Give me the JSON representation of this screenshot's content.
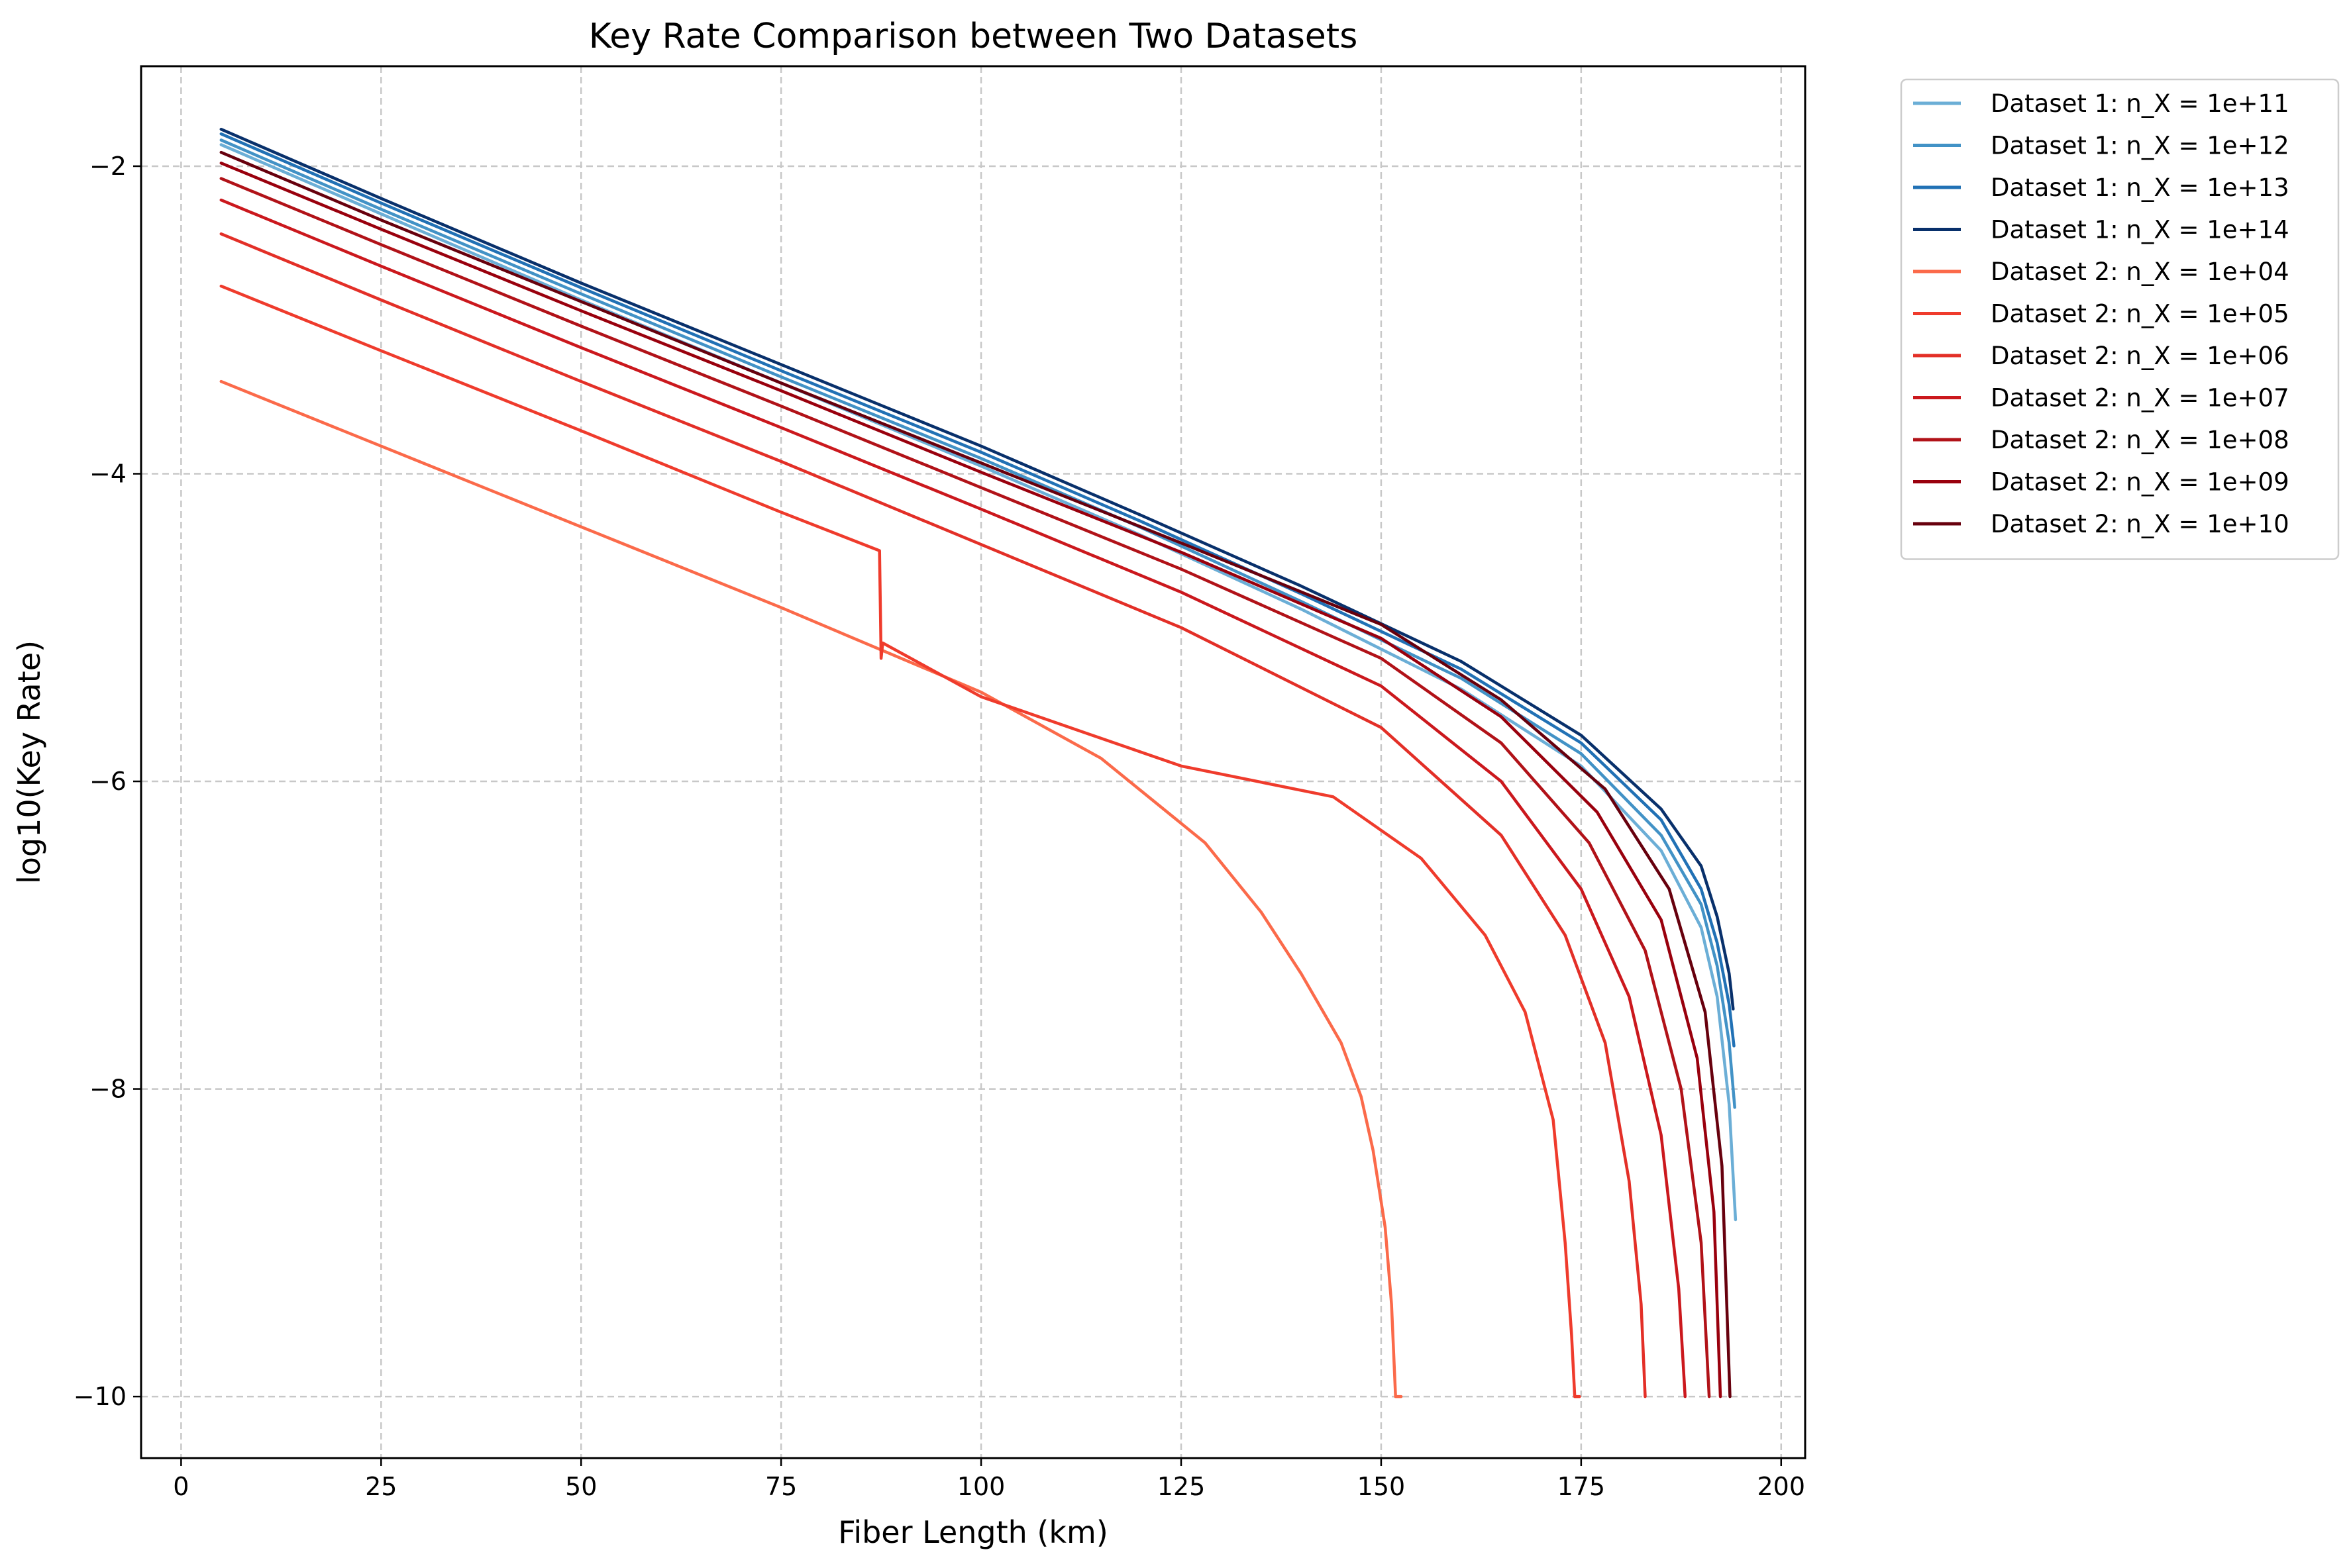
{
  "chart_data": {
    "type": "line",
    "title": "Key Rate Comparison between Two Datasets",
    "xlabel": "Fiber Length (km)",
    "ylabel": "log10(Key Rate)",
    "xlim": [
      -5,
      203
    ],
    "ylim": [
      -10.4,
      -1.35
    ],
    "xticks": [
      0,
      25,
      50,
      75,
      100,
      125,
      150,
      175,
      200
    ],
    "xtick_labels": [
      "0",
      "25",
      "50",
      "75",
      "100",
      "125",
      "150",
      "175",
      "200"
    ],
    "yticks": [
      -2,
      -4,
      -6,
      -8,
      -10
    ],
    "ytick_labels": [
      "−2",
      "−4",
      "−6",
      "−8",
      "−10"
    ],
    "grid": true,
    "legend_position": "outside-top-right",
    "series": [
      {
        "name": "Dataset 1: n_X = 1e+11",
        "color": "#6baed6",
        "points": [
          [
            5,
            -1.86
          ],
          [
            25,
            -2.31
          ],
          [
            50,
            -2.87
          ],
          [
            75,
            -3.41
          ],
          [
            100,
            -3.95
          ],
          [
            120,
            -4.4
          ],
          [
            140,
            -4.88
          ],
          [
            160,
            -5.4
          ],
          [
            175,
            -5.9
          ],
          [
            185,
            -6.45
          ],
          [
            190,
            -6.95
          ],
          [
            192,
            -7.4
          ],
          [
            193.5,
            -8.1
          ],
          [
            194.3,
            -8.85
          ]
        ]
      },
      {
        "name": "Dataset 1: n_X = 1e+12",
        "color": "#4292c6",
        "points": [
          [
            5,
            -1.83
          ],
          [
            25,
            -2.28
          ],
          [
            50,
            -2.83
          ],
          [
            75,
            -3.37
          ],
          [
            100,
            -3.9
          ],
          [
            120,
            -4.35
          ],
          [
            140,
            -4.83
          ],
          [
            160,
            -5.33
          ],
          [
            175,
            -5.82
          ],
          [
            185,
            -6.35
          ],
          [
            190,
            -6.8
          ],
          [
            192,
            -7.2
          ],
          [
            193.5,
            -7.7
          ],
          [
            194.2,
            -8.12
          ]
        ]
      },
      {
        "name": "Dataset 1: n_X = 1e+13",
        "color": "#2171b5",
        "points": [
          [
            5,
            -1.79
          ],
          [
            25,
            -2.24
          ],
          [
            50,
            -2.79
          ],
          [
            75,
            -3.33
          ],
          [
            100,
            -3.86
          ],
          [
            120,
            -4.31
          ],
          [
            140,
            -4.78
          ],
          [
            160,
            -5.27
          ],
          [
            175,
            -5.75
          ],
          [
            185,
            -6.25
          ],
          [
            190,
            -6.7
          ],
          [
            192,
            -7.05
          ],
          [
            193.5,
            -7.45
          ],
          [
            194.1,
            -7.72
          ]
        ]
      },
      {
        "name": "Dataset 1: n_X = 1e+14",
        "color": "#08306b",
        "points": [
          [
            5,
            -1.76
          ],
          [
            25,
            -2.21
          ],
          [
            50,
            -2.76
          ],
          [
            75,
            -3.29
          ],
          [
            100,
            -3.82
          ],
          [
            120,
            -4.27
          ],
          [
            140,
            -4.73
          ],
          [
            160,
            -5.22
          ],
          [
            175,
            -5.7
          ],
          [
            185,
            -6.18
          ],
          [
            190,
            -6.55
          ],
          [
            192,
            -6.88
          ],
          [
            193.5,
            -7.25
          ],
          [
            194,
            -7.48
          ]
        ]
      },
      {
        "name": "Dataset 2: n_X = 1e+04",
        "color": "#fb6a4a",
        "points": [
          [
            5,
            -3.4
          ],
          [
            25,
            -3.82
          ],
          [
            55,
            -4.45
          ],
          [
            75,
            -4.87
          ],
          [
            100,
            -5.42
          ],
          [
            115,
            -5.85
          ],
          [
            128,
            -6.4
          ],
          [
            135,
            -6.85
          ],
          [
            140,
            -7.25
          ],
          [
            145,
            -7.7
          ],
          [
            147.5,
            -8.05
          ],
          [
            149,
            -8.4
          ],
          [
            150.5,
            -8.9
          ],
          [
            151.3,
            -9.4
          ],
          [
            151.8,
            -10.0
          ],
          [
            152.5,
            -10.0
          ]
        ]
      },
      {
        "name": "Dataset 2: n_X = 1e+05",
        "color": "#ef3b2c",
        "points": [
          [
            5,
            -2.78
          ],
          [
            25,
            -3.2
          ],
          [
            50,
            -3.72
          ],
          [
            75,
            -4.25
          ],
          [
            87.3,
            -4.5
          ],
          [
            87.5,
            -5.2
          ],
          [
            87.7,
            -5.1
          ],
          [
            100,
            -5.45
          ],
          [
            125,
            -5.9
          ],
          [
            144,
            -6.1
          ],
          [
            155,
            -6.5
          ],
          [
            163,
            -7.0
          ],
          [
            168,
            -7.5
          ],
          [
            171.5,
            -8.2
          ],
          [
            173,
            -9.0
          ],
          [
            173.8,
            -9.6
          ],
          [
            174.2,
            -10.0
          ],
          [
            174.8,
            -10.0
          ]
        ]
      },
      {
        "name": "Dataset 2: n_X = 1e+06",
        "color": "#e32f27",
        "points": [
          [
            5,
            -2.44
          ],
          [
            25,
            -2.87
          ],
          [
            50,
            -3.4
          ],
          [
            75,
            -3.92
          ],
          [
            100,
            -4.46
          ],
          [
            125,
            -5.0
          ],
          [
            150,
            -5.65
          ],
          [
            165,
            -6.35
          ],
          [
            173,
            -7.0
          ],
          [
            178,
            -7.7
          ],
          [
            181,
            -8.6
          ],
          [
            182.5,
            -9.4
          ],
          [
            183,
            -10.0
          ]
        ]
      },
      {
        "name": "Dataset 2: n_X = 1e+07",
        "color": "#cb181d",
        "points": [
          [
            5,
            -2.22
          ],
          [
            25,
            -2.65
          ],
          [
            50,
            -3.18
          ],
          [
            75,
            -3.7
          ],
          [
            100,
            -4.23
          ],
          [
            125,
            -4.77
          ],
          [
            150,
            -5.38
          ],
          [
            165,
            -6.0
          ],
          [
            175,
            -6.7
          ],
          [
            181,
            -7.4
          ],
          [
            185,
            -8.3
          ],
          [
            187.2,
            -9.3
          ],
          [
            188,
            -10.0
          ]
        ]
      },
      {
        "name": "Dataset 2: n_X = 1e+08",
        "color": "#b11218",
        "points": [
          [
            5,
            -2.08
          ],
          [
            25,
            -2.51
          ],
          [
            50,
            -3.04
          ],
          [
            75,
            -3.56
          ],
          [
            100,
            -4.09
          ],
          [
            125,
            -4.62
          ],
          [
            150,
            -5.2
          ],
          [
            165,
            -5.75
          ],
          [
            176,
            -6.4
          ],
          [
            183,
            -7.1
          ],
          [
            187.5,
            -8.0
          ],
          [
            190,
            -9.0
          ],
          [
            191,
            -10.0
          ]
        ]
      },
      {
        "name": "Dataset 2: n_X = 1e+09",
        "color": "#99000d",
        "points": [
          [
            5,
            -1.98
          ],
          [
            25,
            -2.41
          ],
          [
            50,
            -2.94
          ],
          [
            75,
            -3.46
          ],
          [
            100,
            -3.99
          ],
          [
            125,
            -4.51
          ],
          [
            150,
            -5.07
          ],
          [
            165,
            -5.58
          ],
          [
            177,
            -6.2
          ],
          [
            185,
            -6.9
          ],
          [
            189.5,
            -7.8
          ],
          [
            191.6,
            -8.8
          ],
          [
            192.4,
            -10.0
          ]
        ]
      },
      {
        "name": "Dataset 2: n_X = 1e+10",
        "color": "#67000d",
        "points": [
          [
            5,
            -1.91
          ],
          [
            25,
            -2.35
          ],
          [
            50,
            -2.88
          ],
          [
            75,
            -3.41
          ],
          [
            100,
            -3.93
          ],
          [
            125,
            -4.45
          ],
          [
            150,
            -4.98
          ],
          [
            165,
            -5.47
          ],
          [
            178,
            -6.05
          ],
          [
            186,
            -6.7
          ],
          [
            190.5,
            -7.5
          ],
          [
            192.6,
            -8.5
          ],
          [
            193.6,
            -10.0
          ]
        ]
      }
    ]
  }
}
